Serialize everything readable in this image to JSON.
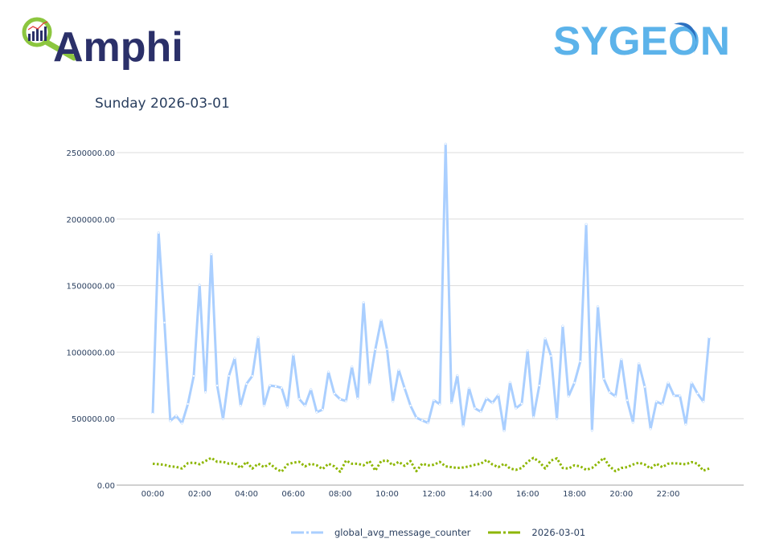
{
  "logos": {
    "left": "Amphi",
    "right": "SYGEON"
  },
  "chart_data": {
    "type": "line",
    "title": "Sunday 2026-03-01",
    "xlabel": "",
    "ylabel": "",
    "ylim": [
      0,
      2650000
    ],
    "y_ticks": [
      "0.00",
      "500000.00",
      "1000000.00",
      "1500000.00",
      "2000000.00",
      "2500000.00"
    ],
    "y_tick_values": [
      0,
      500000,
      1000000,
      1500000,
      2000000,
      2500000
    ],
    "x_ticks": [
      "00:00",
      "02:00",
      "04:00",
      "06:00",
      "08:00",
      "10:00",
      "12:00",
      "14:00",
      "16:00",
      "18:00",
      "20:00",
      "22:00"
    ],
    "grid": "horizontal",
    "legend_placement": "bottom",
    "x_interval_minutes": 15,
    "x_start": "00:00",
    "series": [
      {
        "name": "global_avg_message_counter",
        "color": "#aacfff",
        "style": "solid-with-markers",
        "values": [
          537000,
          1897000,
          1222000,
          483000,
          521000,
          465000,
          610000,
          821000,
          1504000,
          700000,
          1735000,
          749000,
          497000,
          821000,
          954000,
          598000,
          761000,
          821000,
          1111000,
          598000,
          749000,
          743000,
          731000,
          586000,
          980000,
          648000,
          598000,
          719000,
          549000,
          568000,
          851000,
          688000,
          646000,
          632000,
          890000,
          652000,
          1373000,
          759000,
          1021000,
          1242000,
          1021000,
          628000,
          866000,
          729000,
          598000,
          507000,
          487000,
          467000,
          638000,
          608000,
          2565000,
          618000,
          825000,
          443000,
          729000,
          578000,
          552000,
          652000,
          618000,
          678000,
          407000,
          773000,
          578000,
          612000,
          1011000,
          511000,
          749000,
          1101000,
          971000,
          497000,
          1196000,
          668000,
          769000,
          930000,
          1961000,
          411000,
          1343000,
          799000,
          699000,
          668000,
          946000,
          638000,
          471000,
          914000,
          739000,
          423000,
          628000,
          608000,
          769000,
          672000,
          672000,
          457000,
          769000,
          689000,
          628000,
          1111000
        ]
      },
      {
        "name": "2026-03-01",
        "color": "#8db600",
        "style": "dotted",
        "values": [
          161000,
          157000,
          153000,
          141000,
          137000,
          125000,
          165000,
          169000,
          157000,
          181000,
          205000,
          175000,
          175000,
          161000,
          165000,
          129000,
          175000,
          125000,
          161000,
          135000,
          161000,
          125000,
          101000,
          155000,
          169000,
          175000,
          141000,
          161000,
          149000,
          121000,
          161000,
          141000,
          101000,
          185000,
          161000,
          161000,
          149000,
          181000,
          109000,
          181000,
          185000,
          149000,
          175000,
          145000,
          181000,
          105000,
          161000,
          149000,
          153000,
          175000,
          141000,
          135000,
          129000,
          133000,
          141000,
          153000,
          161000,
          189000,
          155000,
          135000,
          161000,
          125000,
          115000,
          129000,
          175000,
          205000,
          175000,
          125000,
          185000,
          201000,
          129000,
          125000,
          149000,
          141000,
          115000,
          129000,
          165000,
          205000,
          141000,
          105000,
          129000,
          135000,
          155000,
          169000,
          155000,
          125000,
          161000,
          135000,
          161000,
          165000,
          161000,
          157000,
          173000,
          161000,
          109000,
          125000
        ]
      }
    ]
  }
}
